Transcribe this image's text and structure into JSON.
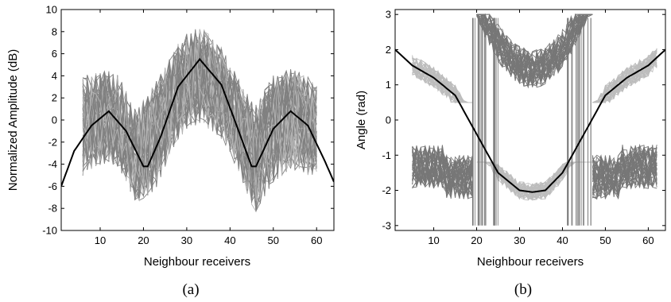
{
  "chart_data": [
    {
      "type": "line",
      "panel_label": "(a)",
      "xlabel": "Neighbour receivers",
      "ylabel": "Normalized Amplitude (dB)",
      "xlim": [
        1,
        64
      ],
      "ylim": [
        -10,
        10
      ],
      "xticks": [
        "10",
        "20",
        "30",
        "40",
        "50",
        "60"
      ],
      "yticks": [
        "10",
        "8",
        "6",
        "4",
        "2",
        "0",
        "-2",
        "-4",
        "-6",
        "-8",
        "-10"
      ],
      "grid": false,
      "legend": "none",
      "colors": {
        "model": "#000000",
        "measured": "#808080",
        "measured_light": "#b4b4b4"
      },
      "model_curve": {
        "x": [
          1,
          4,
          8,
          12,
          16,
          20,
          21,
          24,
          28,
          33,
          38,
          42,
          45,
          46,
          50,
          54,
          58,
          62,
          64
        ],
        "y": [
          -6.0,
          -2.8,
          -0.5,
          0.8,
          -1.0,
          -4.2,
          -4.2,
          -1.5,
          3.0,
          5.5,
          3.2,
          -1.0,
          -4.2,
          -4.2,
          -0.8,
          0.8,
          -0.5,
          -3.8,
          -5.6
        ]
      },
      "measured_envelope": {
        "x": [
          6,
          10,
          14,
          18,
          20,
          22,
          26,
          30,
          34,
          38,
          42,
          46,
          50,
          54,
          58,
          60
        ],
        "upper": [
          7,
          6,
          6,
          2,
          5,
          6,
          8,
          9.5,
          9.5,
          8,
          6,
          4,
          6,
          6,
          6,
          6
        ],
        "lower": [
          -6,
          -6,
          -6,
          -10,
          -8,
          -8,
          -5,
          -3,
          -3,
          -4,
          -6,
          -10,
          -8,
          -7,
          -7,
          -6
        ]
      }
    },
    {
      "type": "line",
      "panel_label": "(b)",
      "xlabel": "Neighbour receivers",
      "ylabel": "Angle (rad)",
      "xlim": [
        1,
        64
      ],
      "ylim": [
        -3.14,
        3.14
      ],
      "xticks": [
        "10",
        "20",
        "30",
        "40",
        "50",
        "60"
      ],
      "yticks": [
        "3",
        "2",
        "1",
        "0",
        "-1",
        "-2",
        "-3"
      ],
      "grid": false,
      "legend": "none",
      "colors": {
        "model": "#000000",
        "measured": "#777777",
        "measured_light": "#bdbdbd"
      },
      "model_curve": {
        "x": [
          1,
          5,
          10,
          15,
          20,
          25,
          30,
          33,
          36,
          40,
          45,
          50,
          55,
          60,
          64
        ],
        "y": [
          2.0,
          1.55,
          1.2,
          0.7,
          -0.4,
          -1.5,
          -2.0,
          -2.05,
          -2.0,
          -1.5,
          -0.4,
          0.7,
          1.2,
          1.55,
          2.0
        ]
      },
      "measured_clusters": [
        {
          "x": [
            5,
            62
          ],
          "y_range": [
            -3.0,
            -0.5
          ],
          "shade": "dark",
          "region": "outer-lower"
        },
        {
          "x": [
            5,
            62
          ],
          "y_range": [
            0.5,
            2.3
          ],
          "shade": "light",
          "region": "outer-upper"
        },
        {
          "x": [
            20,
            47
          ],
          "y_range": [
            0.8,
            3.0
          ],
          "shade": "dark",
          "region": "inner-upper"
        },
        {
          "x": [
            20,
            47
          ],
          "y_range": [
            -3.0,
            -1.2
          ],
          "shade": "light",
          "region": "inner-lower"
        }
      ]
    }
  ]
}
